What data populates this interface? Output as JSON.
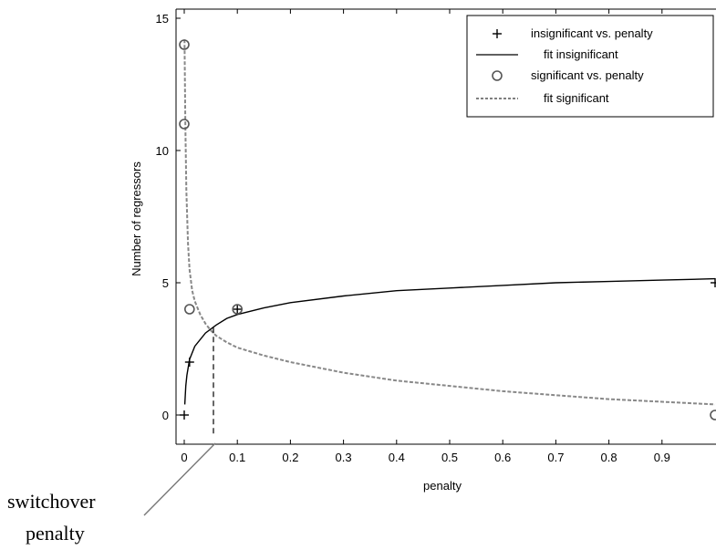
{
  "chart_data": {
    "type": "scatter",
    "title": "",
    "xlabel": "penalty",
    "ylabel": "Number of regressors",
    "xlim": [
      -0.01,
      1.0
    ],
    "ylim": [
      -1,
      15.2
    ],
    "xticks": [
      "0",
      "0.1",
      "0.2",
      "0.3",
      "0.4",
      "0.5",
      "0.6",
      "0.7",
      "0.8",
      "0.9"
    ],
    "yticks": [
      "0",
      "5",
      "10",
      "15"
    ],
    "grid": false,
    "legend_position": "top-right",
    "series": [
      {
        "name": "insignificant vs. penalty",
        "kind": "points",
        "marker": "plus",
        "x": [
          0.0,
          0.01,
          0.1,
          1.0
        ],
        "y": [
          0,
          2,
          4,
          5
        ]
      },
      {
        "name": "fit insignificant",
        "kind": "line",
        "style": "solid",
        "x": [
          0.001,
          0.003,
          0.005,
          0.01,
          0.02,
          0.04,
          0.06,
          0.08,
          0.1,
          0.15,
          0.2,
          0.3,
          0.4,
          0.5,
          0.6,
          0.7,
          0.8,
          0.9,
          1.0
        ],
        "y": [
          0.4,
          1.1,
          1.5,
          2.1,
          2.6,
          3.1,
          3.4,
          3.65,
          3.8,
          4.05,
          4.25,
          4.5,
          4.7,
          4.8,
          4.9,
          5.0,
          5.05,
          5.1,
          5.15
        ]
      },
      {
        "name": "significant vs. penalty",
        "kind": "points",
        "marker": "circle",
        "x": [
          0.0,
          0.0,
          0.01,
          0.1,
          1.0
        ],
        "y": [
          14,
          11,
          4,
          4,
          0
        ]
      },
      {
        "name": "fit significant",
        "kind": "line",
        "style": "dashed",
        "x": [
          0.0005,
          0.002,
          0.004,
          0.007,
          0.01,
          0.015,
          0.02,
          0.03,
          0.04,
          0.05,
          0.06,
          0.08,
          0.1,
          0.15,
          0.2,
          0.3,
          0.4,
          0.5,
          0.6,
          0.7,
          0.8,
          0.9,
          1.0
        ],
        "y": [
          14.2,
          11.0,
          8.5,
          6.5,
          5.5,
          4.7,
          4.3,
          3.8,
          3.45,
          3.2,
          3.0,
          2.75,
          2.55,
          2.25,
          2.0,
          1.6,
          1.3,
          1.1,
          0.9,
          0.75,
          0.6,
          0.5,
          0.4
        ]
      }
    ],
    "annotations": [
      {
        "text_lines": [
          "switchover",
          "penalty"
        ],
        "kind": "callout",
        "target_x": 0.055,
        "target_y_top": 3.3
      }
    ]
  }
}
